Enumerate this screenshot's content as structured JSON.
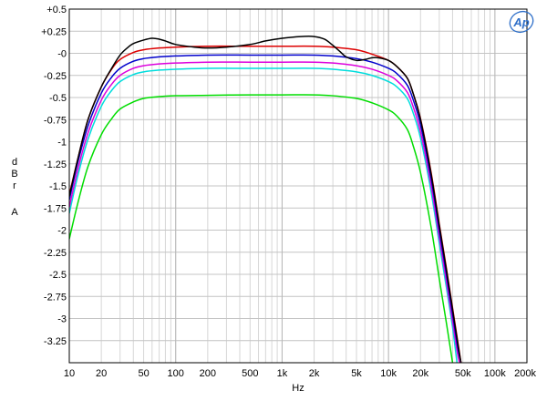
{
  "chart_data": {
    "type": "line",
    "title": "",
    "xlabel": "Hz",
    "ylabel_lines": [
      "d",
      "B",
      "r",
      "",
      "A"
    ],
    "x_scale": "log",
    "xlim": [
      10,
      200000
    ],
    "ylim": [
      -3.5,
      0.5
    ],
    "x_ticks": [
      {
        "value": 10,
        "label": "10"
      },
      {
        "value": 20,
        "label": "20"
      },
      {
        "value": 50,
        "label": "50"
      },
      {
        "value": 100,
        "label": "100"
      },
      {
        "value": 200,
        "label": "200"
      },
      {
        "value": 500,
        "label": "500"
      },
      {
        "value": 1000,
        "label": "1k"
      },
      {
        "value": 2000,
        "label": "2k"
      },
      {
        "value": 5000,
        "label": "5k"
      },
      {
        "value": 10000,
        "label": "10k"
      },
      {
        "value": 20000,
        "label": "20k"
      },
      {
        "value": 50000,
        "label": "50k"
      },
      {
        "value": 100000,
        "label": "100k"
      },
      {
        "value": 200000,
        "label": "200k"
      }
    ],
    "y_ticks": [
      {
        "value": 0.5,
        "label": "+0.5"
      },
      {
        "value": 0.25,
        "label": "+0.25"
      },
      {
        "value": 0,
        "label": "-0"
      },
      {
        "value": -0.25,
        "label": "-0.25"
      },
      {
        "value": -0.5,
        "label": "-0.5"
      },
      {
        "value": -0.75,
        "label": "-0.75"
      },
      {
        "value": -1,
        "label": "-1"
      },
      {
        "value": -1.25,
        "label": "-1.25"
      },
      {
        "value": -1.5,
        "label": "-1.5"
      },
      {
        "value": -1.75,
        "label": "-1.75"
      },
      {
        "value": -2,
        "label": "-2"
      },
      {
        "value": -2.25,
        "label": "-2.25"
      },
      {
        "value": -2.5,
        "label": "-2.5"
      },
      {
        "value": -2.75,
        "label": "-2.75"
      },
      {
        "value": -3,
        "label": "-3"
      },
      {
        "value": -3.25,
        "label": "-3.25"
      }
    ],
    "grid": true,
    "series": [
      {
        "color": "#000000",
        "points": [
          [
            10,
            -1.62
          ],
          [
            12,
            -1.2
          ],
          [
            15,
            -0.75
          ],
          [
            20,
            -0.38
          ],
          [
            25,
            -0.17
          ],
          [
            30,
            -0.02
          ],
          [
            35,
            0.06
          ],
          [
            40,
            0.11
          ],
          [
            50,
            0.15
          ],
          [
            60,
            0.17
          ],
          [
            70,
            0.16
          ],
          [
            80,
            0.14
          ],
          [
            100,
            0.1
          ],
          [
            150,
            0.07
          ],
          [
            200,
            0.06
          ],
          [
            300,
            0.07
          ],
          [
            500,
            0.1
          ],
          [
            700,
            0.14
          ],
          [
            1000,
            0.17
          ],
          [
            1500,
            0.19
          ],
          [
            2000,
            0.19
          ],
          [
            2500,
            0.16
          ],
          [
            3000,
            0.09
          ],
          [
            3500,
            0.02
          ],
          [
            4000,
            -0.04
          ],
          [
            5000,
            -0.08
          ],
          [
            6000,
            -0.07
          ],
          [
            7000,
            -0.05
          ],
          [
            8000,
            -0.05
          ],
          [
            10000,
            -0.08
          ],
          [
            12000,
            -0.15
          ],
          [
            15000,
            -0.28
          ],
          [
            17000,
            -0.45
          ],
          [
            20000,
            -0.75
          ],
          [
            25000,
            -1.35
          ],
          [
            30000,
            -1.95
          ],
          [
            35000,
            -2.45
          ],
          [
            40000,
            -2.9
          ],
          [
            45000,
            -3.3
          ],
          [
            48000,
            -3.5
          ]
        ]
      },
      {
        "color": "#dd0000",
        "points": [
          [
            10,
            -1.6
          ],
          [
            12,
            -1.2
          ],
          [
            15,
            -0.75
          ],
          [
            20,
            -0.38
          ],
          [
            25,
            -0.18
          ],
          [
            30,
            -0.07
          ],
          [
            40,
            0.01
          ],
          [
            50,
            0.04
          ],
          [
            70,
            0.06
          ],
          [
            100,
            0.07
          ],
          [
            200,
            0.08
          ],
          [
            500,
            0.08
          ],
          [
            1000,
            0.08
          ],
          [
            2000,
            0.08
          ],
          [
            3000,
            0.07
          ],
          [
            5000,
            0.04
          ],
          [
            7000,
            -0.01
          ],
          [
            10000,
            -0.08
          ],
          [
            12000,
            -0.15
          ],
          [
            15000,
            -0.28
          ],
          [
            17000,
            -0.45
          ],
          [
            20000,
            -0.74
          ],
          [
            25000,
            -1.33
          ],
          [
            30000,
            -1.93
          ],
          [
            35000,
            -2.43
          ],
          [
            40000,
            -2.88
          ],
          [
            45000,
            -3.28
          ],
          [
            48000,
            -3.5
          ]
        ]
      },
      {
        "color": "#0000cc",
        "points": [
          [
            10,
            -1.66
          ],
          [
            12,
            -1.24
          ],
          [
            15,
            -0.82
          ],
          [
            20,
            -0.45
          ],
          [
            25,
            -0.27
          ],
          [
            30,
            -0.17
          ],
          [
            40,
            -0.09
          ],
          [
            50,
            -0.06
          ],
          [
            70,
            -0.04
          ],
          [
            100,
            -0.03
          ],
          [
            200,
            -0.02
          ],
          [
            500,
            -0.02
          ],
          [
            1000,
            -0.02
          ],
          [
            2000,
            -0.02
          ],
          [
            3000,
            -0.03
          ],
          [
            5000,
            -0.06
          ],
          [
            7000,
            -0.1
          ],
          [
            10000,
            -0.17
          ],
          [
            12000,
            -0.23
          ],
          [
            15000,
            -0.36
          ],
          [
            17000,
            -0.52
          ],
          [
            20000,
            -0.81
          ],
          [
            25000,
            -1.4
          ],
          [
            30000,
            -2.0
          ],
          [
            35000,
            -2.5
          ],
          [
            40000,
            -2.95
          ],
          [
            45000,
            -3.35
          ],
          [
            48000,
            -3.5
          ]
        ]
      },
      {
        "color": "#dd00dd",
        "points": [
          [
            10,
            -1.74
          ],
          [
            12,
            -1.32
          ],
          [
            15,
            -0.9
          ],
          [
            20,
            -0.53
          ],
          [
            25,
            -0.35
          ],
          [
            30,
            -0.25
          ],
          [
            40,
            -0.17
          ],
          [
            50,
            -0.14
          ],
          [
            70,
            -0.12
          ],
          [
            100,
            -0.11
          ],
          [
            200,
            -0.1
          ],
          [
            500,
            -0.1
          ],
          [
            1000,
            -0.1
          ],
          [
            2000,
            -0.1
          ],
          [
            3000,
            -0.11
          ],
          [
            5000,
            -0.14
          ],
          [
            7000,
            -0.18
          ],
          [
            10000,
            -0.25
          ],
          [
            12000,
            -0.31
          ],
          [
            15000,
            -0.44
          ],
          [
            17000,
            -0.6
          ],
          [
            20000,
            -0.89
          ],
          [
            25000,
            -1.48
          ],
          [
            30000,
            -2.08
          ],
          [
            35000,
            -2.58
          ],
          [
            40000,
            -3.03
          ],
          [
            45000,
            -3.43
          ],
          [
            47000,
            -3.5
          ]
        ]
      },
      {
        "color": "#00dddd",
        "points": [
          [
            10,
            -1.81
          ],
          [
            12,
            -1.39
          ],
          [
            15,
            -0.97
          ],
          [
            20,
            -0.6
          ],
          [
            25,
            -0.42
          ],
          [
            30,
            -0.32
          ],
          [
            40,
            -0.24
          ],
          [
            50,
            -0.21
          ],
          [
            70,
            -0.19
          ],
          [
            100,
            -0.18
          ],
          [
            200,
            -0.17
          ],
          [
            500,
            -0.17
          ],
          [
            1000,
            -0.17
          ],
          [
            2000,
            -0.17
          ],
          [
            3000,
            -0.18
          ],
          [
            5000,
            -0.21
          ],
          [
            7000,
            -0.25
          ],
          [
            10000,
            -0.32
          ],
          [
            12000,
            -0.38
          ],
          [
            15000,
            -0.51
          ],
          [
            17000,
            -0.67
          ],
          [
            20000,
            -0.96
          ],
          [
            25000,
            -1.55
          ],
          [
            30000,
            -2.15
          ],
          [
            35000,
            -2.65
          ],
          [
            40000,
            -3.1
          ],
          [
            44000,
            -3.5
          ]
        ]
      },
      {
        "color": "#00dd00",
        "points": [
          [
            10,
            -2.1
          ],
          [
            12,
            -1.7
          ],
          [
            15,
            -1.28
          ],
          [
            20,
            -0.92
          ],
          [
            25,
            -0.74
          ],
          [
            30,
            -0.63
          ],
          [
            40,
            -0.55
          ],
          [
            50,
            -0.51
          ],
          [
            70,
            -0.49
          ],
          [
            100,
            -0.48
          ],
          [
            200,
            -0.475
          ],
          [
            500,
            -0.47
          ],
          [
            1000,
            -0.47
          ],
          [
            2000,
            -0.47
          ],
          [
            3000,
            -0.48
          ],
          [
            5000,
            -0.51
          ],
          [
            7000,
            -0.56
          ],
          [
            10000,
            -0.64
          ],
          [
            12000,
            -0.71
          ],
          [
            15000,
            -0.86
          ],
          [
            17000,
            -1.04
          ],
          [
            20000,
            -1.35
          ],
          [
            25000,
            -1.95
          ],
          [
            30000,
            -2.55
          ],
          [
            35000,
            -3.05
          ],
          [
            40000,
            -3.5
          ]
        ]
      }
    ]
  },
  "logo": {
    "text": "Ap",
    "color": "#2e6fc9"
  }
}
